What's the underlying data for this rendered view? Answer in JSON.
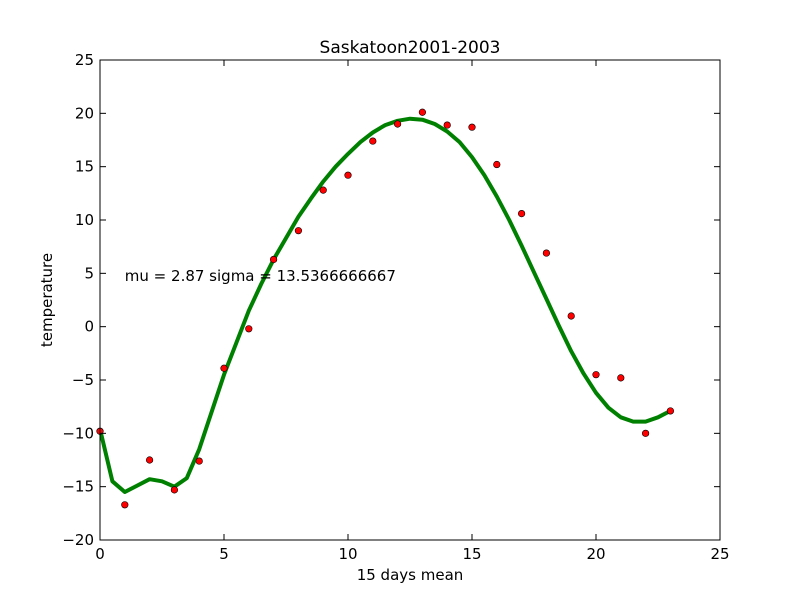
{
  "chart_data": {
    "type": "scatter",
    "title": "Saskatoon2001-2003",
    "xlabel": "15 days mean",
    "ylabel": "temperature",
    "xlim": [
      0,
      25
    ],
    "ylim": [
      -20,
      25
    ],
    "xticks": [
      0,
      5,
      10,
      15,
      20,
      25
    ],
    "yticks": [
      -20,
      -15,
      -10,
      -5,
      0,
      5,
      10,
      15,
      20,
      25
    ],
    "grid": false,
    "annotation": {
      "text": "mu = 2.87 sigma = 13.5366666667",
      "x": 1,
      "y": 4.3
    },
    "series": [
      {
        "kind": "points",
        "color": "#ff0000",
        "x": [
          0,
          1,
          2,
          3,
          4,
          5,
          6,
          7,
          8,
          9,
          10,
          11,
          12,
          13,
          14,
          15,
          16,
          17,
          18,
          19,
          20,
          21,
          22,
          23
        ],
        "y": [
          -9.8,
          -16.7,
          -12.5,
          -15.3,
          -12.6,
          -3.9,
          -0.2,
          6.3,
          9.0,
          12.8,
          14.2,
          17.4,
          19.0,
          20.1,
          18.9,
          18.7,
          15.2,
          10.6,
          6.9,
          1.0,
          -4.5,
          -4.8,
          -10.0,
          -7.9
        ]
      },
      {
        "kind": "fit-line",
        "color": "#008000",
        "x": [
          0,
          0.5,
          1,
          1.5,
          2,
          2.5,
          3,
          3.5,
          4,
          4.5,
          5,
          5.5,
          6,
          6.5,
          7,
          7.5,
          8,
          8.5,
          9,
          9.5,
          10,
          10.5,
          11,
          11.5,
          12,
          12.5,
          13,
          13.5,
          14,
          14.5,
          15,
          15.5,
          16,
          16.5,
          17,
          17.5,
          18,
          18.5,
          19,
          19.5,
          20,
          20.5,
          21,
          21.5,
          22,
          22.5,
          23
        ],
        "y": [
          -9.6,
          -14.5,
          -15.5,
          -14.9,
          -14.3,
          -14.5,
          -15.0,
          -14.2,
          -11.5,
          -8.0,
          -4.5,
          -1.5,
          1.5,
          4.0,
          6.3,
          8.3,
          10.3,
          12.0,
          13.6,
          15.0,
          16.2,
          17.3,
          18.2,
          18.9,
          19.3,
          19.5,
          19.4,
          19.0,
          18.3,
          17.3,
          15.9,
          14.2,
          12.2,
          10.0,
          7.6,
          5.1,
          2.6,
          0.1,
          -2.3,
          -4.4,
          -6.2,
          -7.6,
          -8.5,
          -8.9,
          -8.9,
          -8.5,
          -7.9
        ]
      }
    ]
  }
}
